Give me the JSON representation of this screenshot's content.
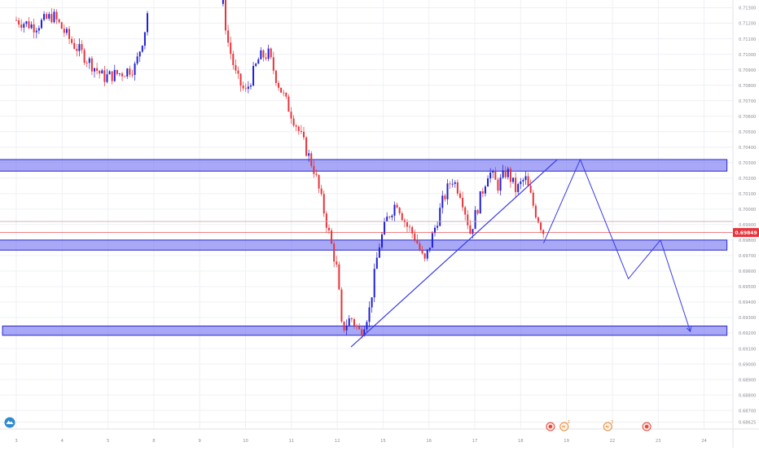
{
  "colors": {
    "up": "#1f1fd6",
    "down": "#e5343a",
    "zone_fill": "#6e6ef2",
    "zone_stroke": "#2828c8",
    "drawing": "#3a3ae6",
    "grid": "#eef0f4",
    "axis_text": "#8c8c98",
    "current_price": "#e5343a",
    "ref_line": "#c9aab0",
    "event_red": "#e24a3b",
    "event_orange": "#e88a3a"
  },
  "logo_icon": "tradingview-cloud-icon",
  "current_price_label": "0.69849",
  "chart_data": {
    "type": "candlestick",
    "x_tick_labels": [
      "3",
      "4",
      "5",
      "8",
      "9",
      "10",
      "11",
      "12",
      "15",
      "16",
      "17",
      "18",
      "19",
      "22",
      "23",
      "24"
    ],
    "y_tick_labels": [
      "0.71300",
      "0.71200",
      "0.71100",
      "0.71000",
      "0.70900",
      "0.70800",
      "0.70700",
      "0.70600",
      "0.70500",
      "0.70400",
      "0.70300",
      "0.70200",
      "0.70100",
      "0.70000",
      "0.69900",
      "0.69800",
      "0.69700",
      "0.69600",
      "0.69500",
      "0.69400",
      "0.69300",
      "0.69200",
      "0.69100",
      "0.69000",
      "0.68900",
      "0.68800",
      "0.68700",
      "0.68625"
    ],
    "y_tick_values": [
      0.713,
      0.712,
      0.711,
      0.71,
      0.709,
      0.708,
      0.707,
      0.706,
      0.705,
      0.704,
      0.703,
      0.702,
      0.701,
      0.7,
      0.699,
      0.698,
      0.697,
      0.696,
      0.695,
      0.694,
      0.693,
      0.692,
      0.691,
      0.69,
      0.689,
      0.688,
      0.687,
      0.68625
    ],
    "ylim": [
      0.6858,
      0.7135
    ],
    "current_price": 0.69849,
    "reference_price": 0.6992,
    "price_path": [
      {
        "x": 0,
        "p": 0.7122
      },
      {
        "x": 0.4,
        "p": 0.7118
      },
      {
        "x": 0.8,
        "p": 0.7125
      },
      {
        "x": 1.2,
        "p": 0.7108
      },
      {
        "x": 1.6,
        "p": 0.7095
      },
      {
        "x": 1.9,
        "p": 0.7085
      },
      {
        "x": 2.3,
        "p": 0.7088
      },
      {
        "x": 2.6,
        "p": 0.7092
      },
      {
        "x": 2.8,
        "p": 0.7115
      },
      {
        "x": 2.9,
        "p": 0.7135
      },
      {
        "x": 4.5,
        "p": 0.7135
      },
      {
        "x": 4.6,
        "p": 0.711
      },
      {
        "x": 4.8,
        "p": 0.7085
      },
      {
        "x": 5.0,
        "p": 0.7075
      },
      {
        "x": 5.3,
        "p": 0.7098
      },
      {
        "x": 5.5,
        "p": 0.71
      },
      {
        "x": 5.7,
        "p": 0.7082
      },
      {
        "x": 5.9,
        "p": 0.7068
      },
      {
        "x": 6.1,
        "p": 0.7055
      },
      {
        "x": 6.3,
        "p": 0.704
      },
      {
        "x": 6.5,
        "p": 0.7025
      },
      {
        "x": 6.7,
        "p": 0.7
      },
      {
        "x": 6.85,
        "p": 0.698
      },
      {
        "x": 7.0,
        "p": 0.696
      },
      {
        "x": 7.1,
        "p": 0.6922
      },
      {
        "x": 7.3,
        "p": 0.693
      },
      {
        "x": 7.5,
        "p": 0.692
      },
      {
        "x": 7.7,
        "p": 0.6935
      },
      {
        "x": 7.9,
        "p": 0.6975
      },
      {
        "x": 8.1,
        "p": 0.6995
      },
      {
        "x": 8.3,
        "p": 0.7005
      },
      {
        "x": 8.5,
        "p": 0.699
      },
      {
        "x": 8.7,
        "p": 0.6982
      },
      {
        "x": 8.9,
        "p": 0.6965
      },
      {
        "x": 9.1,
        "p": 0.6985
      },
      {
        "x": 9.3,
        "p": 0.7005
      },
      {
        "x": 9.5,
        "p": 0.702
      },
      {
        "x": 9.7,
        "p": 0.701
      },
      {
        "x": 9.9,
        "p": 0.6985
      },
      {
        "x": 10.1,
        "p": 0.7005
      },
      {
        "x": 10.3,
        "p": 0.7025
      },
      {
        "x": 10.5,
        "p": 0.7015
      },
      {
        "x": 10.7,
        "p": 0.7025
      },
      {
        "x": 10.9,
        "p": 0.7012
      },
      {
        "x": 11.1,
        "p": 0.702
      },
      {
        "x": 11.3,
        "p": 0.7
      },
      {
        "x": 11.5,
        "p": 0.6985
      }
    ],
    "zones": [
      {
        "p_top": 0.7032,
        "p_bottom": 0.70245,
        "x_start": -0.5,
        "x_end": 15.5
      },
      {
        "p_top": 0.698,
        "p_bottom": 0.69735,
        "x_start": -0.5,
        "x_end": 15.5
      },
      {
        "p_top": 0.69245,
        "p_bottom": 0.69185,
        "x_start": -0.3,
        "x_end": 15.5
      }
    ],
    "trendline": [
      {
        "x": 7.3,
        "p": 0.6911
      },
      {
        "x": 11.8,
        "p": 0.7032
      }
    ],
    "projection": [
      {
        "x": 11.5,
        "p": 0.6978
      },
      {
        "x": 12.3,
        "p": 0.7032
      },
      {
        "x": 13.35,
        "p": 0.6955
      },
      {
        "x": 14.05,
        "p": 0.698
      },
      {
        "x": 14.7,
        "p": 0.6921
      }
    ],
    "events": [
      {
        "x": 11.65,
        "kind": "flag"
      },
      {
        "x": 11.95,
        "kind": "wave",
        "label": "2"
      },
      {
        "x": 12.9,
        "kind": "wave",
        "label": "2"
      },
      {
        "x": 13.75,
        "kind": "flag"
      }
    ]
  }
}
